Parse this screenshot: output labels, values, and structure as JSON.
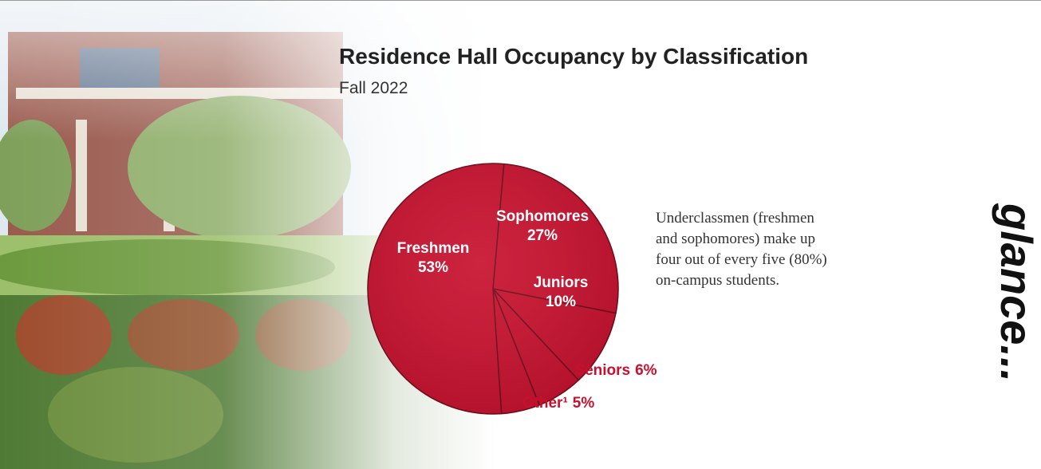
{
  "chart_data": {
    "type": "pie",
    "title": "Residence Hall Occupancy by Classification",
    "subtitle": "Fall 2022",
    "categories": [
      "Sophomores",
      "Juniors",
      "Seniors",
      "Other¹",
      "Freshmen"
    ],
    "values": [
      27,
      10,
      6,
      5,
      53
    ],
    "value_labels": [
      "27%",
      "10%",
      "6%",
      "5%",
      "53%"
    ],
    "color": "#c8102e",
    "annotation": [
      "Underclassmen (freshmen",
      "and sophomores) make up",
      "four out of every five (80%)",
      "on-campus students."
    ],
    "side_text": "glance..."
  }
}
